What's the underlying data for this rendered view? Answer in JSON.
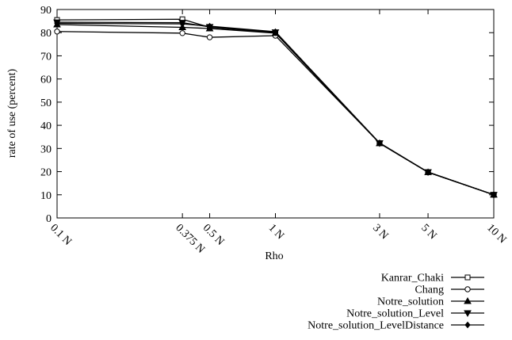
{
  "chart_data": {
    "type": "line",
    "title": "",
    "xlabel": "Rho",
    "ylabel": "rate of use (percent)",
    "ylim": [
      0,
      90
    ],
    "yticks": [
      0,
      10,
      20,
      30,
      40,
      50,
      60,
      70,
      80,
      90
    ],
    "grid": false,
    "legend_placement": "bottom-right",
    "x": [
      0.1,
      0.375,
      0.5,
      1,
      3,
      5,
      10
    ],
    "x_scale": "log",
    "xlim": [
      0.1,
      10
    ],
    "x_tick_labels": [
      "0.1 N",
      "0.375 N",
      "0.5 N",
      "1 N",
      "3 N",
      "5 N",
      "10 N"
    ],
    "series": [
      {
        "name": "Kanrar_Chaki",
        "marker": "square",
        "values": [
          85.5,
          85.8,
          82.3,
          80.0,
          32.3,
          19.8,
          10.0
        ]
      },
      {
        "name": "Chang",
        "marker": "circle",
        "values": [
          80.5,
          79.8,
          78.0,
          78.7,
          32.3,
          19.7,
          10.0
        ]
      },
      {
        "name": "Notre_solution",
        "marker": "triangle-up",
        "values": [
          83.5,
          82.3,
          81.8,
          79.8,
          32.2,
          19.7,
          10.0
        ]
      },
      {
        "name": "Notre_solution_Level",
        "marker": "triangle-down",
        "values": [
          84.5,
          84.3,
          82.5,
          80.2,
          32.3,
          19.8,
          10.0
        ]
      },
      {
        "name": "Notre_solution_LevelDistance",
        "marker": "diamond",
        "values": [
          84.0,
          83.8,
          82.8,
          80.4,
          32.4,
          19.8,
          10.0
        ]
      }
    ]
  }
}
